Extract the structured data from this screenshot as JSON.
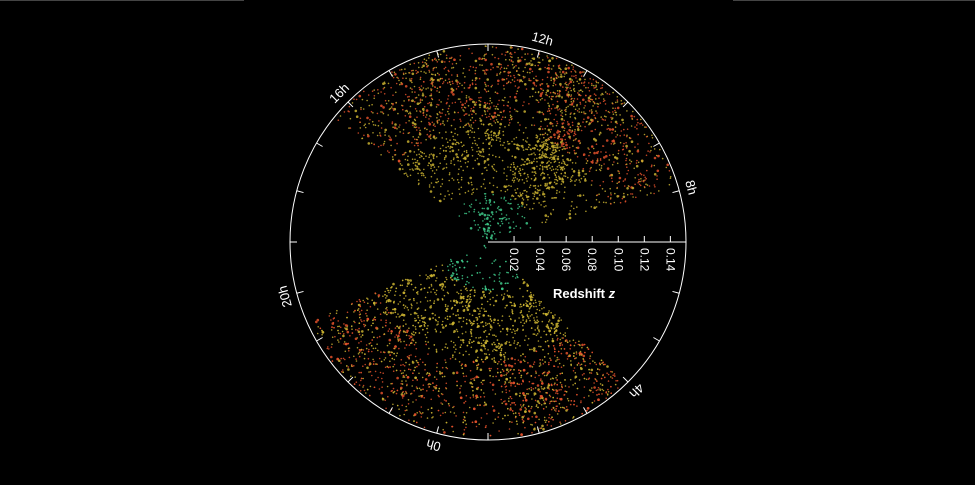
{
  "chart_data": {
    "type": "scatter",
    "projection": "polar wedge map",
    "hour_labels": [
      "12h",
      "8h",
      "4h",
      "0h",
      "20h",
      "16h"
    ],
    "hour_angles": {
      "12h": 15,
      "8h": 75,
      "4h": 135,
      "0h": 195,
      "20h": 255,
      "16h": 315
    },
    "radial_axis": {
      "label": "Redshift",
      "label_italic": "z",
      "ticks": [
        "0.02",
        "0.04",
        "0.06",
        "0.08",
        "0.10",
        "0.12",
        "0.14"
      ],
      "tick_values": [
        0.02,
        0.04,
        0.06,
        0.08,
        0.1,
        0.12,
        0.14
      ],
      "range": [
        0,
        0.152
      ]
    },
    "wedges": [
      {
        "from_deg": -51,
        "to_deg": 74
      },
      {
        "from_deg": 136,
        "to_deg": 246
      }
    ],
    "colors": {
      "near": "#3ec98a",
      "mid": "#c8b030",
      "far": "#e0502a",
      "background": "#000000",
      "axis": "#ffffff"
    }
  }
}
